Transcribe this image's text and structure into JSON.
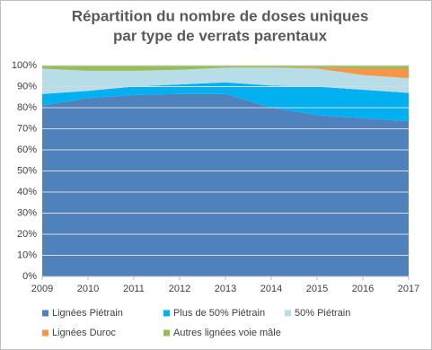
{
  "chart_data": {
    "type": "stacked_area",
    "title": [
      "Répartition du nombre de doses uniques",
      "par type de verrats parentaux"
    ],
    "x": [
      2009,
      2010,
      2011,
      2012,
      2013,
      2014,
      2015,
      2016,
      2017
    ],
    "xlim": [
      2009,
      2017
    ],
    "xticks": [
      2009,
      2010,
      2011,
      2012,
      2013,
      2014,
      2015,
      2016,
      2017
    ],
    "ylim": [
      0,
      100
    ],
    "yticks": [
      {
        "value": 0,
        "label": "0%"
      },
      {
        "value": 10,
        "label": "10%"
      },
      {
        "value": 20,
        "label": "20%"
      },
      {
        "value": 30,
        "label": "30%"
      },
      {
        "value": 40,
        "label": "40%"
      },
      {
        "value": 50,
        "label": "50%"
      },
      {
        "value": 60,
        "label": "60%"
      },
      {
        "value": 70,
        "label": "70%"
      },
      {
        "value": 80,
        "label": "80%"
      },
      {
        "value": 90,
        "label": "90%"
      },
      {
        "value": 100,
        "label": "100%"
      }
    ],
    "grid": true,
    "legend": "bottom",
    "series": [
      {
        "name": "Lignées Piétrain",
        "color": "#4f81bd",
        "values": [
          81,
          84.5,
          86,
          86.5,
          86.5,
          80,
          76.5,
          75,
          73.5
        ]
      },
      {
        "name": "Plus de 50% Piétrain",
        "color": "#00b0f0",
        "values": [
          5.5,
          3.5,
          4,
          4.5,
          5.5,
          10.5,
          13.5,
          13.5,
          13.5
        ]
      },
      {
        "name": "50% Piétrain",
        "color": "#b7dee8",
        "values": [
          12,
          9.5,
          7.5,
          7,
          7,
          8.5,
          8.5,
          7,
          7
        ]
      },
      {
        "name": "Lignées Duroc",
        "color": "#f79646",
        "values": [
          0,
          0,
          0,
          0,
          0,
          0,
          0.5,
          3,
          4.5
        ]
      },
      {
        "name": "Autres lignées voie mâle",
        "color": "#9bbb59",
        "values": [
          1.5,
          2.5,
          2.5,
          2,
          1,
          1,
          1,
          1.5,
          1.5
        ]
      }
    ]
  }
}
